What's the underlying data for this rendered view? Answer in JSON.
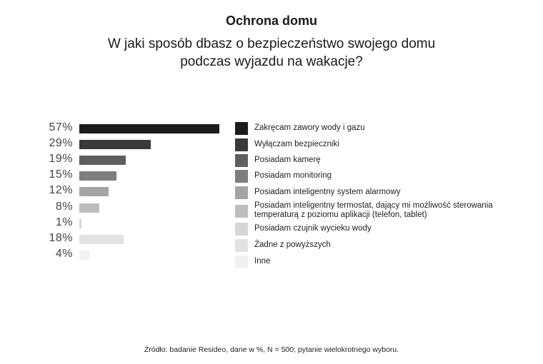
{
  "header": {
    "title": "Ochrona domu",
    "subtitle_line1": "W jaki sposób dbasz o bezpieczeństwo swojego domu",
    "subtitle_line2": "podczas wyjazdu na wakacje?"
  },
  "footer": {
    "source": "Źródło: badanie Resideo, dane w %, N = 500; pytanie wielokrotnego wyboru."
  },
  "chart_data": {
    "type": "bar",
    "orientation": "horizontal",
    "title": "Ochrona domu",
    "subtitle": "W jaki sposób dbasz o bezpieczeństwo swojego domu podczas wyjazdu na wakacje?",
    "xlabel": "",
    "ylabel": "",
    "unit": "%",
    "grid": false,
    "legend_position": "right",
    "categories": [
      "Zakręcam zawory wody i gazu",
      "Wyłączam bezpieczniki",
      "Posiadam kamerę",
      "Posiadam monitoring",
      "Posiadam inteligentny system alarmowy",
      "Posiadam inteligentny termostat, dający mi możliwość sterowania temperaturą z poziomu aplikacji (telefon, tablet)",
      "Posiadam czujnik wycieku wody",
      "Żadne z powyższych",
      "Inne"
    ],
    "values": [
      57,
      29,
      19,
      15,
      12,
      8,
      1,
      18,
      4
    ],
    "value_labels": [
      "57%",
      "29%",
      "19%",
      "15%",
      "12%",
      "8%",
      "1%",
      "18%",
      "4%"
    ],
    "colors": [
      "#1c1c1c",
      "#3a3a3a",
      "#5e5e5e",
      "#7e7e7e",
      "#a4a4a4",
      "#bdbdbd",
      "#d6d6d6",
      "#e2e2e2",
      "#f0f0f0"
    ],
    "legend": [
      {
        "line1": "Zakręcam zawory wody i gazu",
        "line2": ""
      },
      {
        "line1": "Wyłączam bezpieczniki",
        "line2": ""
      },
      {
        "line1": "Posiadam kamerę",
        "line2": ""
      },
      {
        "line1": "Posiadam monitoring",
        "line2": ""
      },
      {
        "line1": "Posiadam inteligentny system alarmowy",
        "line2": ""
      },
      {
        "line1": "Posiadam inteligentny termostat, dający mi możliwość sterowania",
        "line2": "temperaturą z poziomu aplikacji (telefon, tablet)"
      },
      {
        "line1": "Posiadam czujnik wycieku wody",
        "line2": ""
      },
      {
        "line1": "Żadne z powyższych",
        "line2": ""
      },
      {
        "line1": "Inne",
        "line2": ""
      }
    ]
  }
}
